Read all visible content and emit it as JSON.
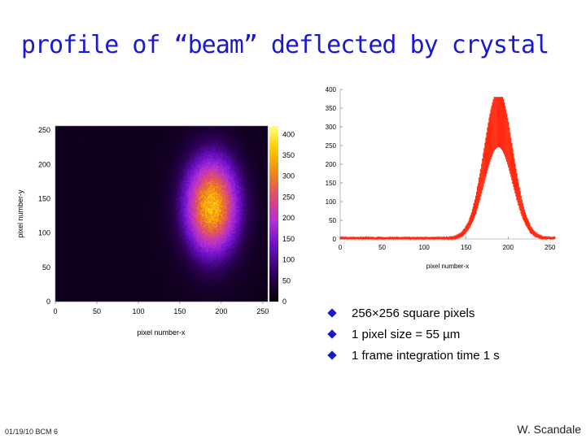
{
  "slide": {
    "title": "profile of “beam” deflected by crystal",
    "footer_date": "01/19/10 BCM 6",
    "footer_author": "W. Scandale"
  },
  "bullets": [
    "256×256 square pixels",
    "1 pixel size = 55 µm",
    "1 frame integration time 1 s"
  ],
  "colors": {
    "title": "#1a1acc",
    "bullet": "#1a1acc",
    "histogram": "#ff2a10"
  },
  "chart_data": [
    {
      "type": "heatmap",
      "xlabel": "pixel number-x",
      "ylabel": "pixel number-y",
      "xlim": [
        0,
        256
      ],
      "ylim": [
        0,
        256
      ],
      "x_ticks": [
        "0",
        "50",
        "100",
        "150",
        "200",
        "250"
      ],
      "y_ticks": [
        "0",
        "50",
        "100",
        "150",
        "200",
        "250"
      ],
      "colorbar_range": [
        0,
        420
      ],
      "colorbar_ticks": [
        "0",
        "50",
        "100",
        "150",
        "200",
        "250",
        "300",
        "350",
        "400"
      ],
      "peak": {
        "x": 188,
        "y": 140,
        "value": 320
      },
      "spread": {
        "x": 22,
        "y": 48
      },
      "background_level": 22,
      "colormap": [
        "#000000",
        "#2a0050",
        "#6a10c8",
        "#b430d8",
        "#e04a70",
        "#f08a10",
        "#ffd000",
        "#ffff80"
      ]
    },
    {
      "type": "scatter",
      "xlabel": "pixel number-x",
      "ylabel": "",
      "xlim": [
        0,
        256
      ],
      "ylim": [
        0,
        400
      ],
      "x_ticks": [
        "0",
        "50",
        "100",
        "150",
        "200",
        "250"
      ],
      "y_ticks": [
        "0",
        "50",
        "100",
        "150",
        "200",
        "250",
        "300",
        "350",
        "400"
      ],
      "peak_x": 188,
      "peak_value": 340,
      "max_value": 380,
      "spread_x": 17
    }
  ]
}
